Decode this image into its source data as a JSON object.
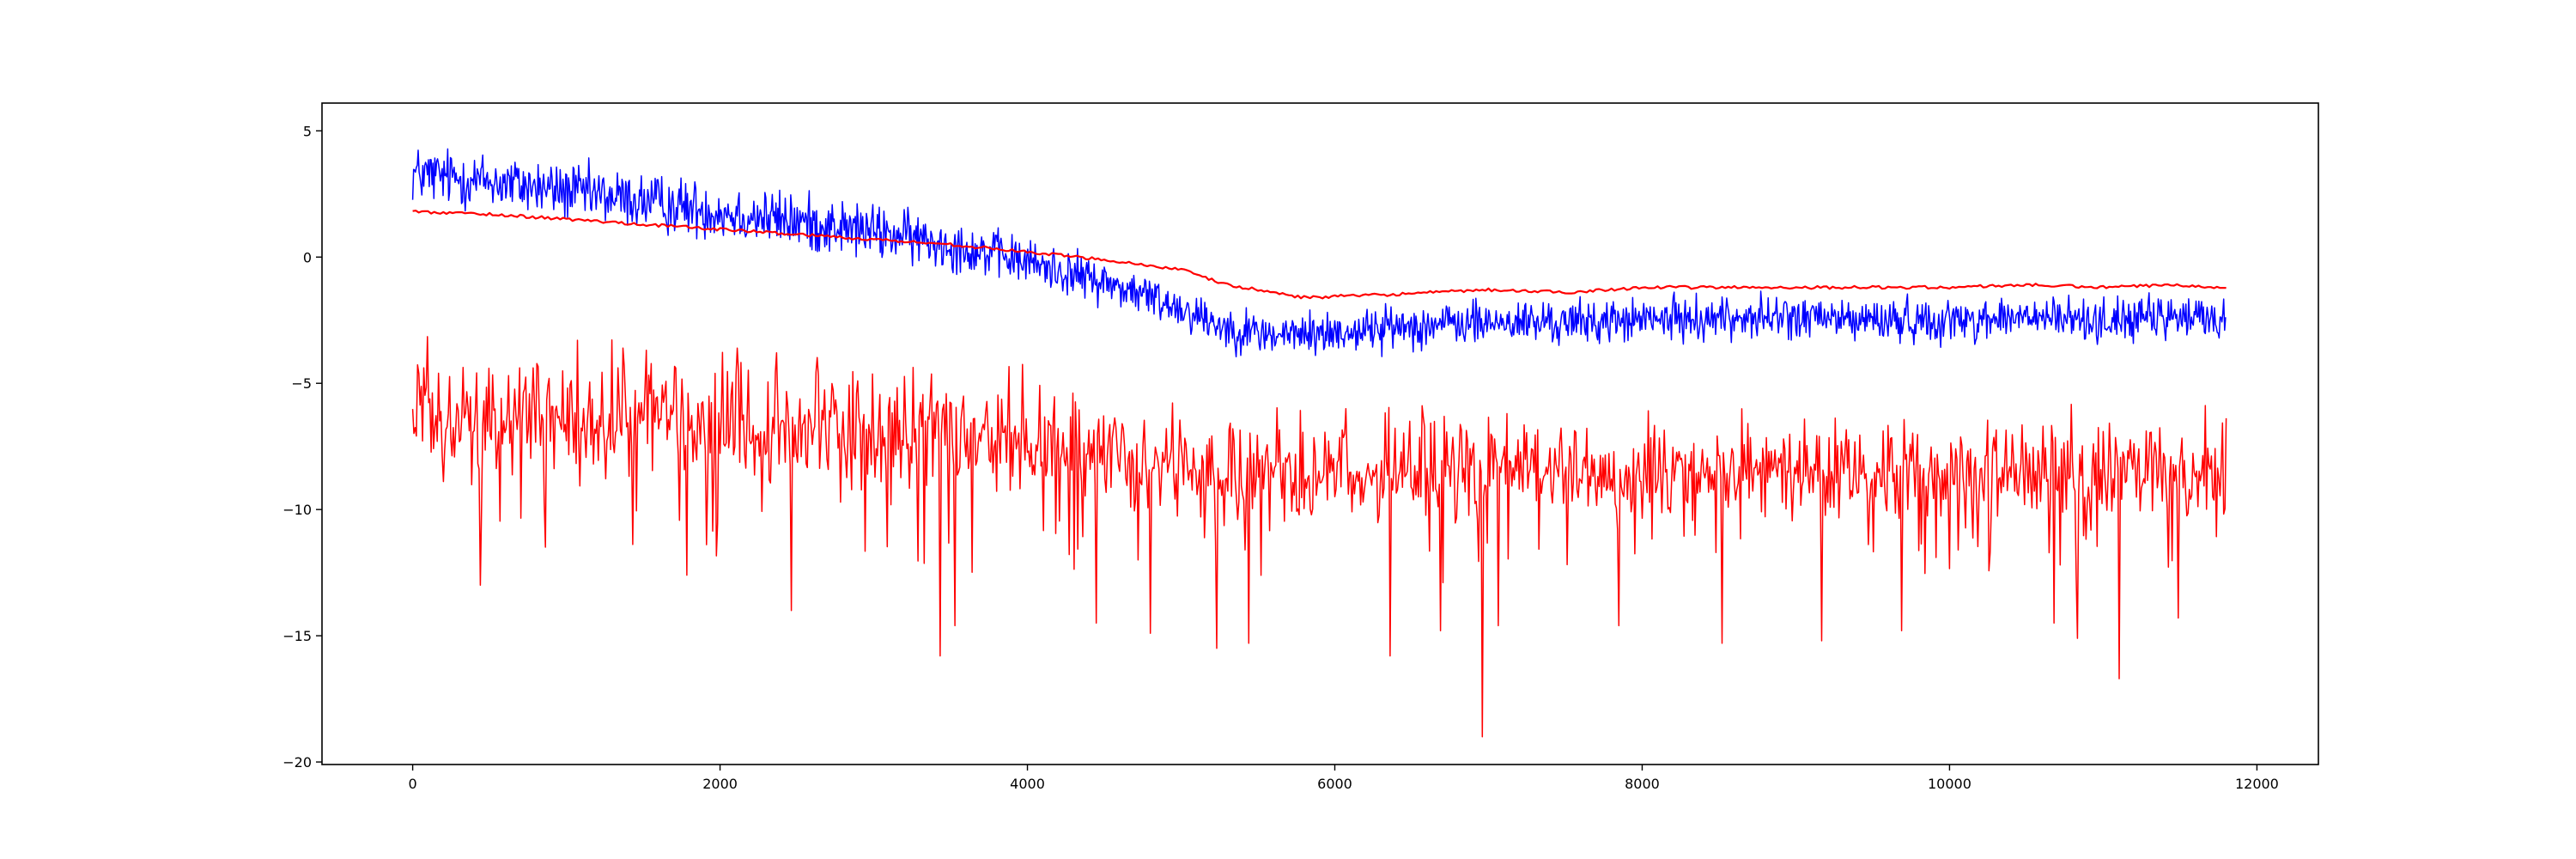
{
  "chart_data": {
    "type": "line",
    "title": "",
    "xlabel": "",
    "ylabel": "",
    "xlim": [
      -590,
      12400
    ],
    "ylim": [
      -20.1,
      6.1
    ],
    "grid": false,
    "legend": "none",
    "x_ticks": [
      0,
      2000,
      4000,
      6000,
      8000,
      10000,
      12000
    ],
    "x_tick_labels": [
      "0",
      "2000",
      "4000",
      "6000",
      "8000",
      "10000",
      "12000"
    ],
    "y_ticks": [
      5,
      0,
      -5,
      -10,
      -15,
      -20
    ],
    "y_tick_labels": [
      "5",
      "0",
      "−5",
      "−10",
      "−15",
      "−20"
    ],
    "x_range_of_data": [
      0,
      11800
    ],
    "series": [
      {
        "color": "#0000ff",
        "style": "noisy",
        "x": [
          0,
          500,
          1000,
          1500,
          2000,
          2500,
          3000,
          3500,
          4000,
          4500,
          5000,
          5300,
          5600,
          6000,
          6500,
          7000,
          7500,
          8000,
          8500,
          9000,
          9500,
          10000,
          10500,
          11000,
          11500,
          11800
        ],
        "values": [
          3.3,
          3.0,
          2.6,
          2.2,
          1.8,
          1.4,
          1.0,
          0.5,
          -0.2,
          -1.0,
          -2.0,
          -2.8,
          -3.1,
          -3.0,
          -2.7,
          -2.6,
          -2.6,
          -2.5,
          -2.4,
          -2.4,
          -2.5,
          -2.5,
          -2.4,
          -2.5,
          -2.4,
          -2.4
        ],
        "noise_band": [
          0.8,
          0.8,
          0.8,
          0.8,
          0.8,
          0.8,
          0.75,
          0.7,
          0.65,
          0.6,
          0.6,
          0.6,
          0.6,
          0.6,
          0.6,
          0.6,
          0.6,
          0.6,
          0.6,
          0.6,
          0.6,
          0.6,
          0.6,
          0.6,
          0.6,
          0.6
        ]
      },
      {
        "color": "#ff0000",
        "style": "smooth",
        "x": [
          0,
          500,
          1000,
          1500,
          2000,
          2500,
          3000,
          3500,
          4000,
          4500,
          5000,
          5300,
          5800,
          6300,
          7000,
          7500,
          8000,
          9000,
          10000,
          10500,
          11000,
          11500,
          11800
        ],
        "values": [
          1.8,
          1.7,
          1.5,
          1.3,
          1.1,
          0.9,
          0.7,
          0.5,
          0.2,
          -0.1,
          -0.5,
          -1.1,
          -1.6,
          -1.5,
          -1.3,
          -1.4,
          -1.2,
          -1.2,
          -1.2,
          -1.1,
          -1.2,
          -1.1,
          -1.2
        ]
      },
      {
        "color": "#ff0000",
        "style": "spiky",
        "x": [
          0,
          1000,
          2000,
          3000,
          4000,
          4500,
          5000,
          6000,
          7000,
          8000,
          9000,
          10000,
          11000,
          11800
        ],
        "values": [
          -6.2,
          -6.4,
          -6.8,
          -7.1,
          -7.4,
          -8.0,
          -8.5,
          -8.6,
          -8.6,
          -8.5,
          -8.5,
          -8.5,
          -8.5,
          -8.5
        ],
        "noise_band": [
          1.6,
          1.6,
          1.6,
          1.6,
          1.5,
          1.4,
          1.3,
          1.3,
          1.3,
          1.3,
          1.3,
          1.3,
          1.3,
          1.3
        ],
        "spikes": [
          {
            "x": 440,
            "y": -13.0
          },
          {
            "x": 1780,
            "y": -12.6
          },
          {
            "x": 2460,
            "y": -14.0
          },
          {
            "x": 3430,
            "y": -15.8
          },
          {
            "x": 3530,
            "y": -14.6
          },
          {
            "x": 4450,
            "y": -14.5
          },
          {
            "x": 4800,
            "y": -14.9
          },
          {
            "x": 5230,
            "y": -15.5
          },
          {
            "x": 5440,
            "y": -15.3
          },
          {
            "x": 6360,
            "y": -15.8
          },
          {
            "x": 6690,
            "y": -14.8
          },
          {
            "x": 6960,
            "y": -19.0
          },
          {
            "x": 7060,
            "y": -14.6
          },
          {
            "x": 7850,
            "y": -14.6
          },
          {
            "x": 8520,
            "y": -15.3
          },
          {
            "x": 9170,
            "y": -15.2
          },
          {
            "x": 9690,
            "y": -14.8
          },
          {
            "x": 10680,
            "y": -14.5
          },
          {
            "x": 10830,
            "y": -15.1
          },
          {
            "x": 11100,
            "y": -16.7
          },
          {
            "x": 11490,
            "y": -14.3
          }
        ]
      }
    ]
  }
}
